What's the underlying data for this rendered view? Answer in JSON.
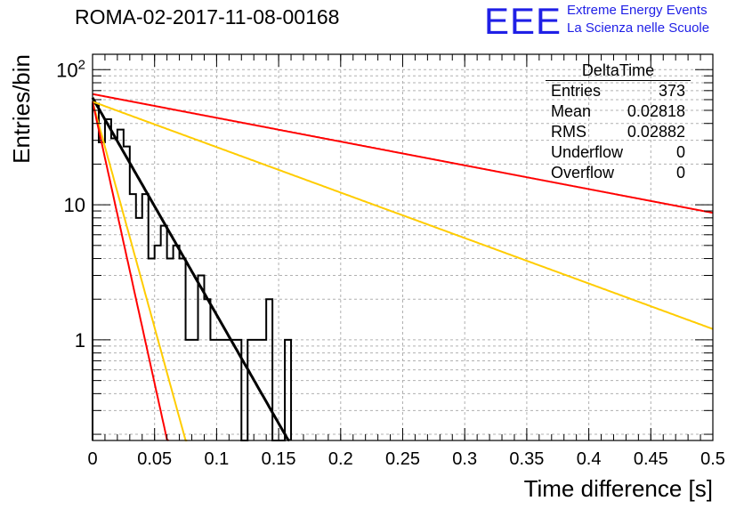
{
  "chart_data": {
    "type": "histogram",
    "title": "ROMA-02-2017-11-08-00168",
    "xlabel": "Time difference [s]",
    "ylabel": "Entries/bin",
    "xlim": [
      0,
      0.5
    ],
    "ylim": [
      0.18,
      130
    ],
    "yscale": "log",
    "grid": true,
    "x_ticks": [
      "0",
      "0.05",
      "0.1",
      "0.15",
      "0.2",
      "0.25",
      "0.3",
      "0.35",
      "0.4",
      "0.45",
      "0.5"
    ],
    "x_tick_values": [
      0,
      0.05,
      0.1,
      0.15,
      0.2,
      0.25,
      0.3,
      0.35,
      0.4,
      0.45,
      0.5
    ],
    "y_ticks": [
      "1",
      "10",
      "10²"
    ],
    "y_tick_values": [
      1,
      10,
      100
    ],
    "bin_width": 0.005,
    "histogram_bins": [
      56,
      29,
      43,
      31,
      36,
      27,
      12,
      8,
      12,
      4,
      5,
      7,
      4,
      5,
      4,
      1,
      1,
      3,
      2,
      1,
      1,
      1,
      1,
      1,
      0,
      1,
      1,
      1,
      2,
      0,
      0,
      1
    ],
    "fit_lines": [
      {
        "color": "#000000",
        "y0": 62,
        "decay_per_s": 37.0
      },
      {
        "color": "#ff0000",
        "y0": 66,
        "decay_per_s": 4.05
      },
      {
        "color": "#ffcc00",
        "y0": 58,
        "decay_per_s": 7.75
      },
      {
        "color": "#ffcc00",
        "y0": 58,
        "decay_per_s": 77.0
      },
      {
        "color": "#ff0000",
        "y0": 58,
        "decay_per_s": 96.0
      }
    ],
    "stats_box": {
      "title": "DeltaTime",
      "rows": [
        {
          "label": "Entries",
          "value": "373"
        },
        {
          "label": "Mean",
          "value": "0.02818"
        },
        {
          "label": "RMS",
          "value": "0.02882"
        },
        {
          "label": "Underflow",
          "value": "0"
        },
        {
          "label": "Overflow",
          "value": "0"
        }
      ]
    }
  },
  "logo": {
    "text": "EEE",
    "line1": "Extreme Energy Events",
    "line2": "La Scienza nelle Scuole",
    "color": "#1f1fe6"
  }
}
